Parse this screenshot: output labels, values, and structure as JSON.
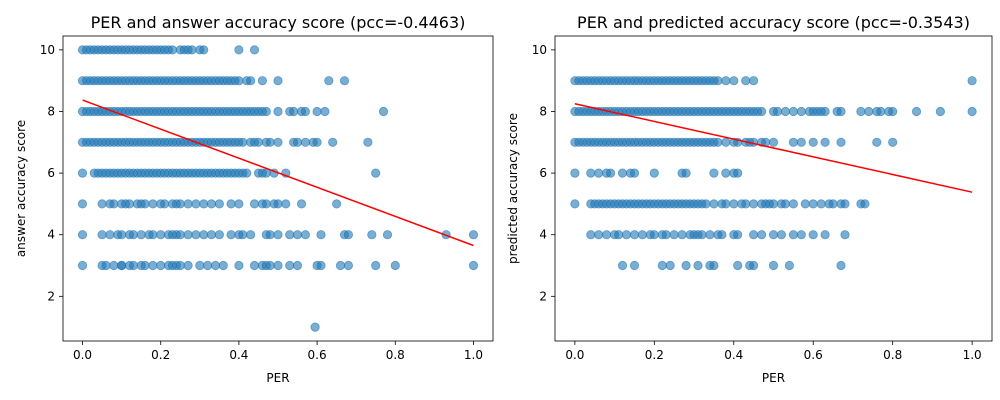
{
  "chart_data": [
    {
      "type": "scatter",
      "title": "PER and answer accuracy score (pcc=-0.4463)",
      "xlabel": "PER",
      "ylabel": "answer accuracy score",
      "xlim": [
        -0.05,
        1.05
      ],
      "ylim": [
        0.55,
        10.45
      ],
      "xticks": [
        0.0,
        0.2,
        0.4,
        0.6,
        0.8,
        1.0
      ],
      "xtick_labels": [
        "0.0",
        "0.2",
        "0.4",
        "0.6",
        "0.8",
        "1.0"
      ],
      "yticks": [
        2,
        4,
        6,
        8,
        10
      ],
      "ytick_labels": [
        "2",
        "4",
        "6",
        "8",
        "10"
      ],
      "point_color": "#1f77b4",
      "point_alpha": 0.6,
      "fit_color": "#ff0000",
      "fit_line": {
        "x": [
          0.0,
          1.0
        ],
        "y": [
          8.37,
          3.65
        ]
      },
      "points": [
        {
          "y": 10,
          "x": [
            0.0,
            0.01,
            0.02,
            0.03,
            0.04,
            0.05,
            0.06,
            0.07,
            0.08,
            0.09,
            0.1,
            0.11,
            0.12,
            0.13,
            0.14,
            0.15,
            0.16,
            0.17,
            0.18,
            0.19,
            0.2,
            0.21,
            0.22,
            0.23,
            0.25,
            0.26,
            0.27,
            0.28,
            0.3,
            0.31,
            0.4,
            0.44
          ]
        },
        {
          "y": 9,
          "x": [
            0.0,
            0.01,
            0.02,
            0.03,
            0.04,
            0.05,
            0.06,
            0.07,
            0.08,
            0.09,
            0.1,
            0.11,
            0.12,
            0.13,
            0.14,
            0.15,
            0.16,
            0.17,
            0.18,
            0.19,
            0.2,
            0.21,
            0.22,
            0.23,
            0.24,
            0.25,
            0.26,
            0.27,
            0.28,
            0.29,
            0.3,
            0.31,
            0.32,
            0.33,
            0.34,
            0.35,
            0.36,
            0.37,
            0.38,
            0.39,
            0.4,
            0.42,
            0.43,
            0.46,
            0.5,
            0.63,
            0.67
          ]
        },
        {
          "y": 8,
          "x": [
            0.0,
            0.01,
            0.02,
            0.03,
            0.04,
            0.05,
            0.06,
            0.07,
            0.08,
            0.09,
            0.1,
            0.11,
            0.12,
            0.13,
            0.14,
            0.15,
            0.16,
            0.17,
            0.18,
            0.19,
            0.2,
            0.21,
            0.22,
            0.23,
            0.24,
            0.25,
            0.26,
            0.27,
            0.28,
            0.29,
            0.3,
            0.31,
            0.32,
            0.33,
            0.34,
            0.35,
            0.36,
            0.37,
            0.38,
            0.39,
            0.4,
            0.41,
            0.42,
            0.43,
            0.44,
            0.45,
            0.46,
            0.47,
            0.5,
            0.53,
            0.54,
            0.56,
            0.57,
            0.6,
            0.62,
            0.77
          ]
        },
        {
          "y": 7,
          "x": [
            0.0,
            0.01,
            0.02,
            0.03,
            0.04,
            0.05,
            0.06,
            0.07,
            0.08,
            0.09,
            0.1,
            0.11,
            0.12,
            0.13,
            0.14,
            0.15,
            0.16,
            0.17,
            0.18,
            0.19,
            0.2,
            0.21,
            0.22,
            0.23,
            0.24,
            0.25,
            0.26,
            0.27,
            0.28,
            0.29,
            0.3,
            0.31,
            0.32,
            0.33,
            0.34,
            0.35,
            0.36,
            0.37,
            0.38,
            0.39,
            0.4,
            0.41,
            0.43,
            0.44,
            0.45,
            0.47,
            0.48,
            0.5,
            0.54,
            0.55,
            0.57,
            0.59,
            0.6,
            0.64,
            0.73
          ]
        },
        {
          "y": 6,
          "x": [
            0.0,
            0.03,
            0.04,
            0.05,
            0.06,
            0.07,
            0.08,
            0.09,
            0.1,
            0.11,
            0.12,
            0.13,
            0.14,
            0.15,
            0.16,
            0.17,
            0.18,
            0.19,
            0.2,
            0.21,
            0.22,
            0.23,
            0.24,
            0.25,
            0.26,
            0.27,
            0.28,
            0.29,
            0.3,
            0.31,
            0.32,
            0.33,
            0.34,
            0.35,
            0.36,
            0.37,
            0.38,
            0.39,
            0.4,
            0.41,
            0.42,
            0.45,
            0.46,
            0.47,
            0.49,
            0.52,
            0.75
          ]
        },
        {
          "y": 5,
          "x": [
            0.0,
            0.05,
            0.07,
            0.08,
            0.1,
            0.11,
            0.12,
            0.14,
            0.15,
            0.16,
            0.18,
            0.2,
            0.21,
            0.23,
            0.24,
            0.25,
            0.27,
            0.29,
            0.31,
            0.33,
            0.35,
            0.38,
            0.4,
            0.44,
            0.46,
            0.47,
            0.49,
            0.5,
            0.52,
            0.56,
            0.65
          ]
        },
        {
          "y": 4,
          "x": [
            0.0,
            0.05,
            0.07,
            0.09,
            0.1,
            0.12,
            0.13,
            0.15,
            0.17,
            0.18,
            0.2,
            0.22,
            0.23,
            0.24,
            0.25,
            0.27,
            0.29,
            0.31,
            0.33,
            0.35,
            0.38,
            0.4,
            0.41,
            0.43,
            0.47,
            0.48,
            0.5,
            0.53,
            0.55,
            0.57,
            0.61,
            0.67,
            0.68,
            0.74,
            0.78,
            0.93,
            1.0
          ]
        },
        {
          "y": 3,
          "x": [
            0.0,
            0.05,
            0.06,
            0.08,
            0.1,
            0.1,
            0.12,
            0.13,
            0.15,
            0.16,
            0.18,
            0.2,
            0.22,
            0.23,
            0.24,
            0.25,
            0.27,
            0.3,
            0.32,
            0.34,
            0.36,
            0.4,
            0.44,
            0.46,
            0.47,
            0.48,
            0.5,
            0.53,
            0.55,
            0.6,
            0.61,
            0.66,
            0.68,
            0.75,
            0.8,
            1.0
          ]
        },
        {
          "y": 1,
          "x": [
            0.595
          ]
        }
      ]
    },
    {
      "type": "scatter",
      "title": "PER and predicted accuracy score (pcc=-0.3543)",
      "xlabel": "PER",
      "ylabel": "predicted accuracy score",
      "xlim": [
        -0.05,
        1.05
      ],
      "ylim": [
        0.55,
        10.45
      ],
      "xticks": [
        0.0,
        0.2,
        0.4,
        0.6,
        0.8,
        1.0
      ],
      "xtick_labels": [
        "0.0",
        "0.2",
        "0.4",
        "0.6",
        "0.8",
        "1.0"
      ],
      "yticks": [
        2,
        4,
        6,
        8,
        10
      ],
      "ytick_labels": [
        "2",
        "4",
        "6",
        "8",
        "10"
      ],
      "point_color": "#1f77b4",
      "point_alpha": 0.6,
      "fit_color": "#ff0000",
      "fit_line": {
        "x": [
          0.0,
          1.0
        ],
        "y": [
          8.25,
          5.38
        ]
      },
      "points": [
        {
          "y": 9,
          "x": [
            0.0,
            0.01,
            0.02,
            0.03,
            0.04,
            0.05,
            0.06,
            0.07,
            0.08,
            0.09,
            0.1,
            0.11,
            0.12,
            0.13,
            0.14,
            0.15,
            0.16,
            0.17,
            0.18,
            0.19,
            0.2,
            0.21,
            0.22,
            0.23,
            0.24,
            0.25,
            0.26,
            0.27,
            0.28,
            0.29,
            0.3,
            0.31,
            0.32,
            0.33,
            0.34,
            0.35,
            0.36,
            0.38,
            0.4,
            0.43,
            0.45,
            1.0
          ]
        },
        {
          "y": 8,
          "x": [
            0.0,
            0.01,
            0.02,
            0.03,
            0.04,
            0.05,
            0.06,
            0.07,
            0.08,
            0.09,
            0.1,
            0.11,
            0.12,
            0.13,
            0.14,
            0.15,
            0.16,
            0.17,
            0.18,
            0.19,
            0.2,
            0.21,
            0.22,
            0.23,
            0.24,
            0.25,
            0.26,
            0.27,
            0.28,
            0.29,
            0.3,
            0.31,
            0.32,
            0.33,
            0.34,
            0.35,
            0.36,
            0.37,
            0.38,
            0.39,
            0.4,
            0.41,
            0.42,
            0.43,
            0.44,
            0.45,
            0.46,
            0.47,
            0.5,
            0.51,
            0.53,
            0.55,
            0.57,
            0.59,
            0.6,
            0.61,
            0.62,
            0.63,
            0.66,
            0.67,
            0.72,
            0.74,
            0.76,
            0.77,
            0.79,
            0.8,
            0.86,
            0.92,
            1.0
          ]
        },
        {
          "y": 7,
          "x": [
            0.0,
            0.01,
            0.02,
            0.03,
            0.04,
            0.05,
            0.06,
            0.07,
            0.08,
            0.09,
            0.1,
            0.11,
            0.12,
            0.13,
            0.14,
            0.15,
            0.16,
            0.17,
            0.18,
            0.19,
            0.2,
            0.21,
            0.22,
            0.23,
            0.24,
            0.25,
            0.26,
            0.27,
            0.28,
            0.29,
            0.3,
            0.31,
            0.32,
            0.33,
            0.34,
            0.35,
            0.36,
            0.38,
            0.4,
            0.41,
            0.43,
            0.44,
            0.45,
            0.47,
            0.48,
            0.5,
            0.55,
            0.57,
            0.6,
            0.63,
            0.67,
            0.76,
            0.8
          ]
        },
        {
          "y": 6,
          "x": [
            0.0,
            0.04,
            0.06,
            0.08,
            0.09,
            0.12,
            0.14,
            0.15,
            0.2,
            0.27,
            0.28,
            0.35,
            0.38,
            0.4,
            0.41
          ]
        },
        {
          "y": 5,
          "x": [
            0.0,
            0.04,
            0.05,
            0.06,
            0.07,
            0.08,
            0.09,
            0.1,
            0.11,
            0.12,
            0.13,
            0.14,
            0.15,
            0.16,
            0.17,
            0.18,
            0.19,
            0.2,
            0.21,
            0.22,
            0.23,
            0.24,
            0.25,
            0.26,
            0.27,
            0.28,
            0.29,
            0.3,
            0.31,
            0.32,
            0.33,
            0.35,
            0.37,
            0.38,
            0.4,
            0.42,
            0.43,
            0.45,
            0.47,
            0.48,
            0.49,
            0.5,
            0.52,
            0.53,
            0.55,
            0.58,
            0.6,
            0.62,
            0.64,
            0.65,
            0.67,
            0.68,
            0.72,
            0.73
          ]
        },
        {
          "y": 4,
          "x": [
            0.04,
            0.06,
            0.08,
            0.1,
            0.11,
            0.13,
            0.15,
            0.17,
            0.19,
            0.2,
            0.22,
            0.23,
            0.25,
            0.27,
            0.29,
            0.3,
            0.31,
            0.32,
            0.34,
            0.36,
            0.37,
            0.4,
            0.41,
            0.45,
            0.47,
            0.5,
            0.52,
            0.55,
            0.57,
            0.6,
            0.63,
            0.68
          ]
        },
        {
          "y": 3,
          "x": [
            0.12,
            0.15,
            0.22,
            0.24,
            0.28,
            0.31,
            0.34,
            0.35,
            0.41,
            0.44,
            0.45,
            0.5,
            0.54,
            0.67
          ]
        }
      ]
    }
  ]
}
